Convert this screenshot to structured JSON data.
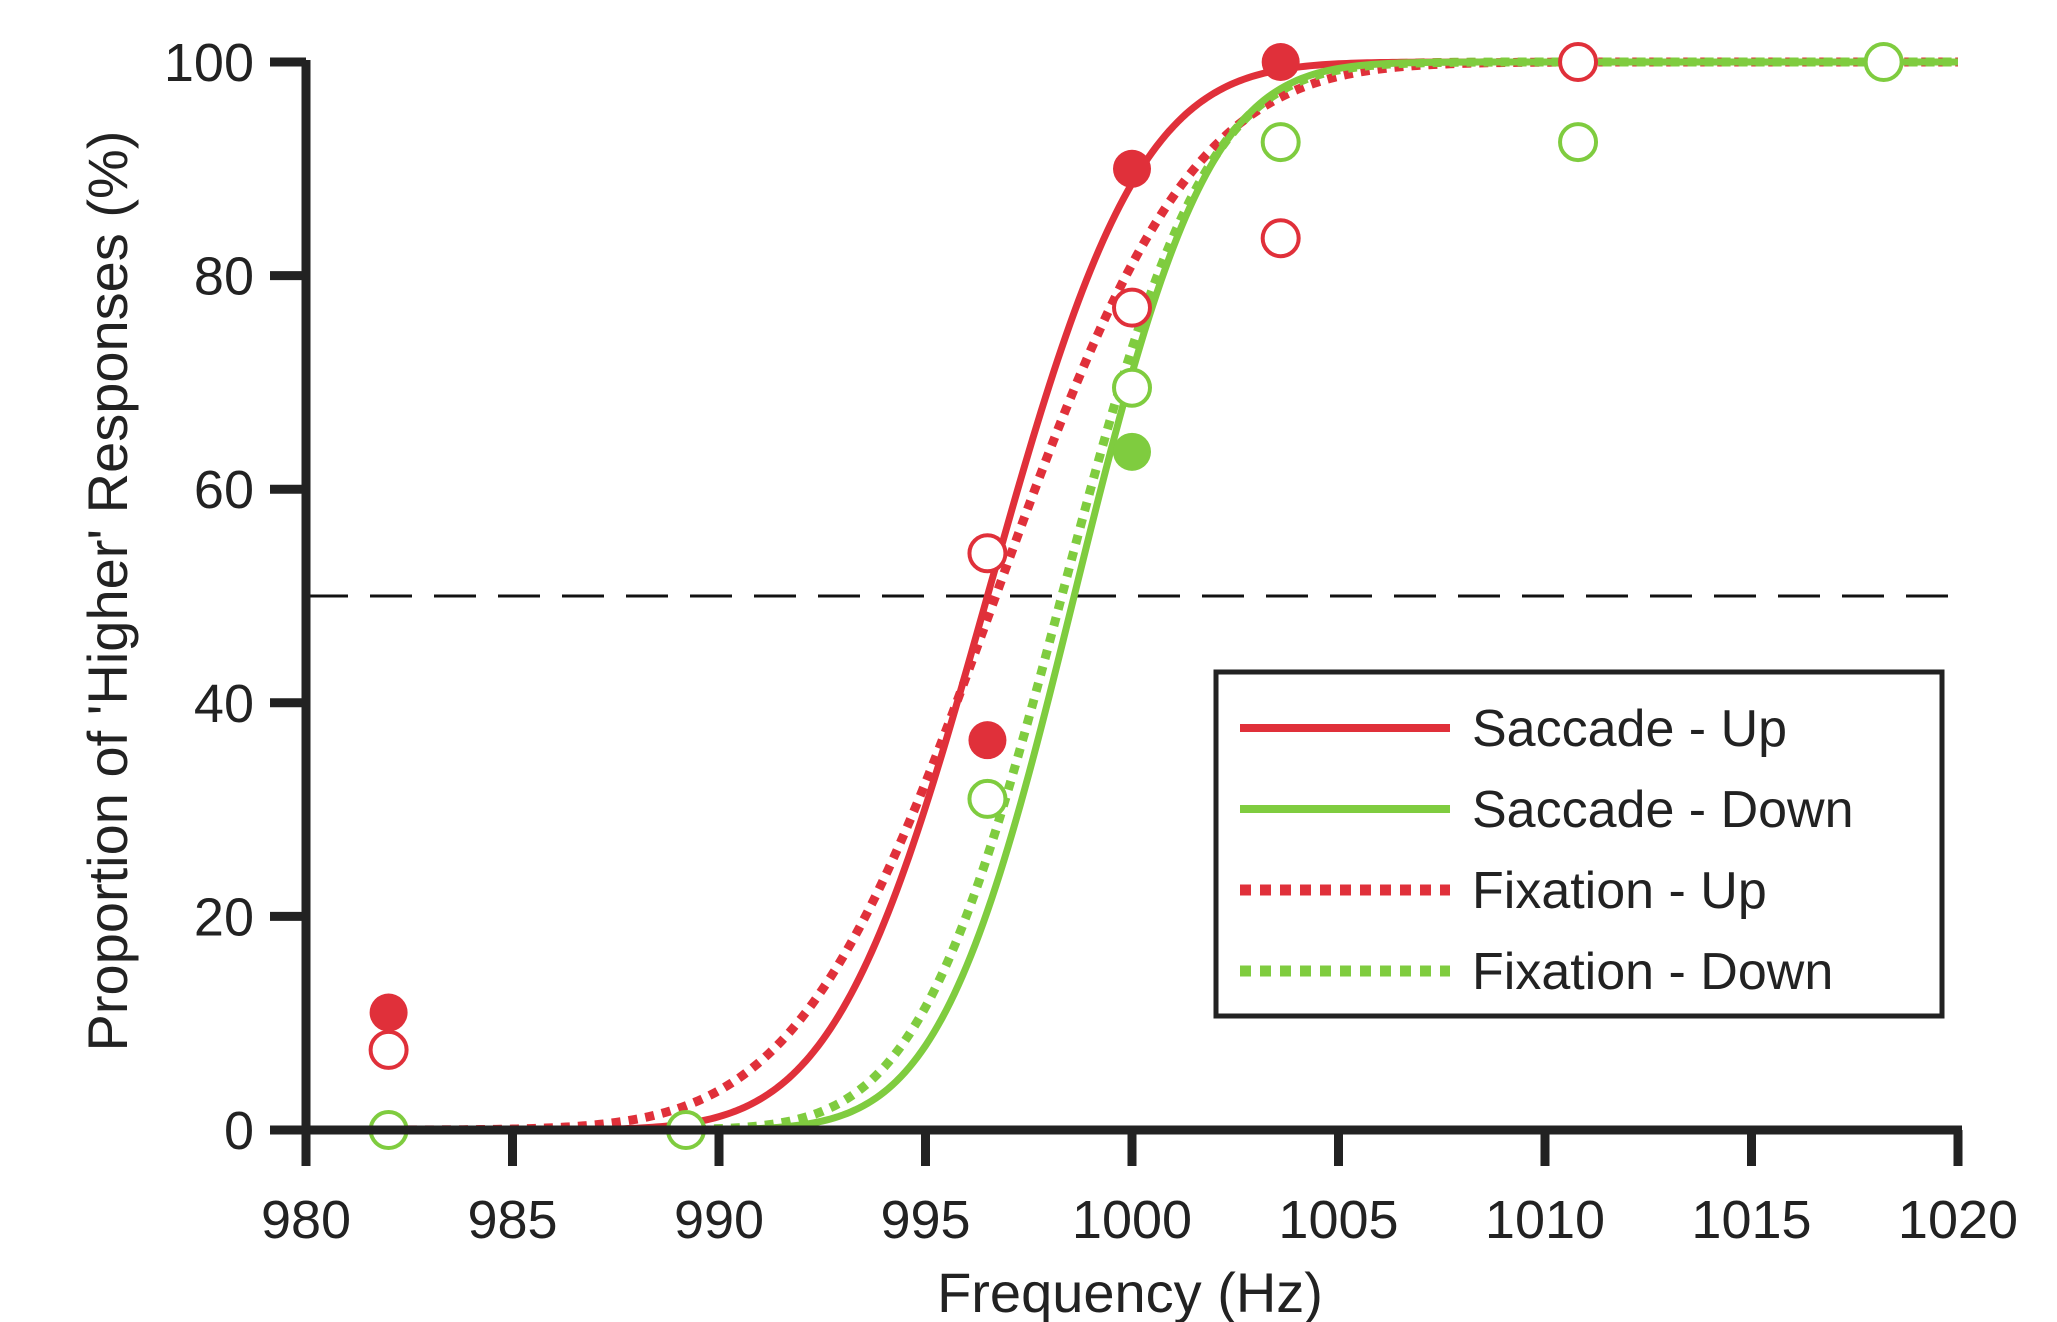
{
  "chart_data": {
    "type": "line",
    "title": "",
    "xlabel": "Frequency (Hz)",
    "ylabel": "Proportion of 'Higher' Responses (%)",
    "xlim": [
      980,
      1020
    ],
    "ylim": [
      0,
      100
    ],
    "x_ticks": [
      980,
      985,
      990,
      995,
      1000,
      1005,
      1010,
      1015,
      1020
    ],
    "x_tick_labels": [
      "980",
      "985",
      "990",
      "995",
      "1000",
      "1005",
      "1010",
      "1015",
      "1020"
    ],
    "y_ticks": [
      0,
      20,
      40,
      60,
      80,
      100
    ],
    "y_tick_labels": [
      "0",
      "20",
      "40",
      "60",
      "80",
      "100"
    ],
    "reference_line": {
      "y": 50,
      "style": "dashed",
      "color": "#111111"
    },
    "grid": false,
    "legend": {
      "placement": "lower-right",
      "boxed": true
    },
    "series": [
      {
        "name": "Saccade - Up",
        "color": "#e0303a",
        "line_style": "solid",
        "fit": {
          "mu": 996.5,
          "sigma": 2.9
        },
        "points_marker": "filled",
        "points": [
          {
            "x": 982,
            "y": 11
          },
          {
            "x": 996.5,
            "y": 36.5
          },
          {
            "x": 1000,
            "y": 90
          },
          {
            "x": 1003.6,
            "y": 100
          }
        ]
      },
      {
        "name": "Saccade - Down",
        "color": "#7fcc3f",
        "line_style": "solid",
        "fit": {
          "mu": 998.6,
          "sigma": 2.55
        },
        "points_marker": "filled",
        "points": [
          {
            "x": 982,
            "y": 0
          },
          {
            "x": 1000,
            "y": 63.5
          }
        ]
      },
      {
        "name": "Fixation - Up",
        "color": "#e0303a",
        "line_style": "dotted",
        "fit": {
          "mu": 996.7,
          "sigma": 3.75
        },
        "points_marker": "open",
        "points": [
          {
            "x": 982,
            "y": 7.5
          },
          {
            "x": 996.5,
            "y": 54
          },
          {
            "x": 1000,
            "y": 77
          },
          {
            "x": 1003.6,
            "y": 83.5
          },
          {
            "x": 1010.8,
            "y": 100
          }
        ]
      },
      {
        "name": "Fixation - Down",
        "color": "#7fcc3f",
        "line_style": "dotted",
        "fit": {
          "mu": 998.3,
          "sigma": 2.75
        },
        "points_marker": "open",
        "points": [
          {
            "x": 982,
            "y": 0
          },
          {
            "x": 989.2,
            "y": 0
          },
          {
            "x": 996.5,
            "y": 31
          },
          {
            "x": 1000,
            "y": 69.5
          },
          {
            "x": 1003.6,
            "y": 92.5
          },
          {
            "x": 1010.8,
            "y": 92.5
          },
          {
            "x": 1018.2,
            "y": 100
          }
        ]
      }
    ]
  }
}
